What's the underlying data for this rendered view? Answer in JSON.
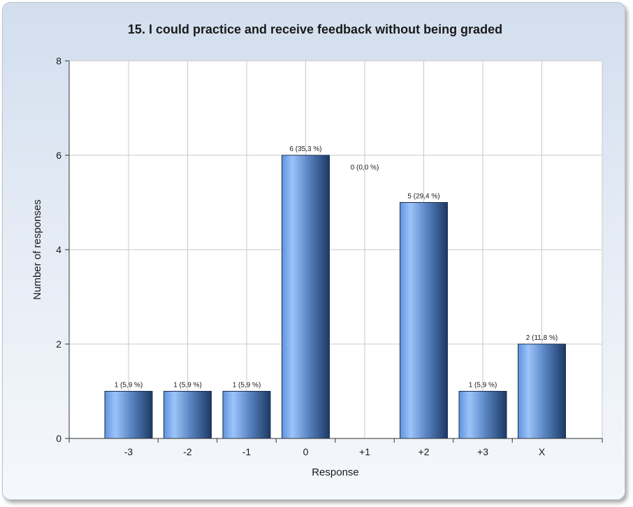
{
  "chart_data": {
    "type": "bar",
    "title": "15. I could practice and receive feedback without being graded",
    "xlabel": "Response",
    "ylabel": "Number of responses",
    "categories": [
      "-3",
      "-2",
      "-1",
      "0",
      "+1",
      "+2",
      "+3",
      "X"
    ],
    "values": [
      1,
      1,
      1,
      6,
      0,
      5,
      1,
      2
    ],
    "data_labels": [
      "1 (5,9 %)",
      "1 (5,9 %)",
      "1 (5,9 %)",
      "6 (35,3 %)",
      "0 (0,0 %)",
      "5 (29,4 %)",
      "1 (5,9 %)",
      "2 (11,8 %)"
    ],
    "ylim": [
      0,
      8
    ],
    "yticks": [
      0,
      2,
      4,
      6,
      8
    ],
    "grid": true,
    "legend": "none",
    "colors": {
      "bar_light": "#9cc4fa",
      "bar_mid": "#5b8fd8",
      "bar_dark": "#1f3f6e",
      "grid": "#c8c8c8",
      "plot_bg": "#ffffff"
    }
  }
}
